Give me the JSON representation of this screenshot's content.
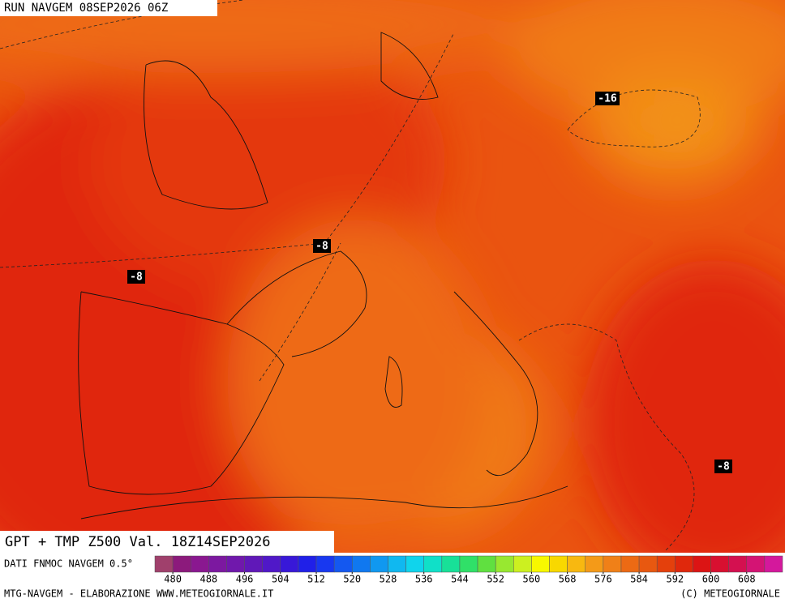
{
  "header": {
    "run": "RUN NAVGEM 08SEP2026 06Z"
  },
  "map": {
    "title": "GPT + TMP Z500 Val. 18Z14SEP2026",
    "contour_labels": [
      "-16",
      "-8",
      "-8",
      "-8"
    ]
  },
  "legend": {
    "source": "DATI FNMOC NAVGEM 0.5°",
    "range": [
      476,
      616
    ],
    "ticks": [
      480,
      488,
      496,
      504,
      512,
      520,
      528,
      536,
      544,
      552,
      560,
      568,
      576,
      584,
      592,
      600,
      608
    ],
    "colors": [
      "#a0406c",
      "#8c1a7c",
      "#8a1890",
      "#7c18a0",
      "#7018ac",
      "#6018b8",
      "#5018c8",
      "#3818d8",
      "#2020e8",
      "#1838f0",
      "#1458f0",
      "#1078f0",
      "#1098f0",
      "#10b8f0",
      "#10d4ec",
      "#10e0c8",
      "#18e098",
      "#30e068",
      "#60e040",
      "#98e830",
      "#ccf020",
      "#f8f800",
      "#f8d800",
      "#f8b810",
      "#f49a18",
      "#f08018",
      "#ec6a14",
      "#e85810",
      "#e4400c",
      "#e0280c",
      "#dc1414",
      "#d81030",
      "#d41050",
      "#d41474",
      "#d4189c"
    ]
  },
  "footer": {
    "left": "MTG-NAVGEM - ELABORAZIONE WWW.METEOGIORNALE.IT",
    "right": "(C) METEOGIORNALE"
  }
}
